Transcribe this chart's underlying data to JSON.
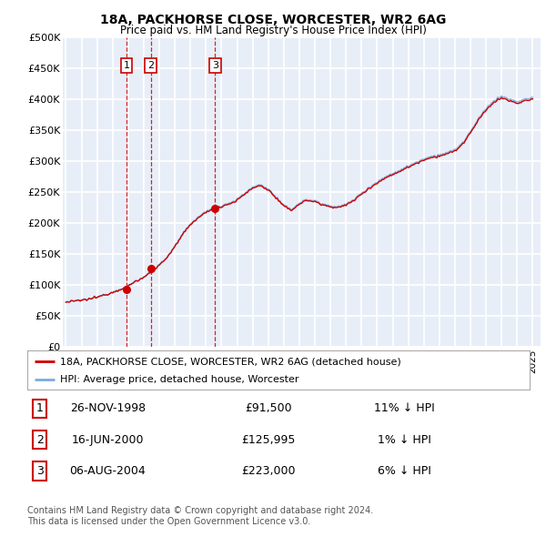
{
  "title": "18A, PACKHORSE CLOSE, WORCESTER, WR2 6AG",
  "subtitle": "Price paid vs. HM Land Registry's House Price Index (HPI)",
  "ylim": [
    0,
    500000
  ],
  "yticks": [
    0,
    50000,
    100000,
    150000,
    200000,
    250000,
    300000,
    350000,
    400000,
    450000,
    500000
  ],
  "ytick_labels": [
    "£0",
    "£50K",
    "£100K",
    "£150K",
    "£200K",
    "£250K",
    "£300K",
    "£350K",
    "£400K",
    "£450K",
    "£500K"
  ],
  "plot_bg_color": "#e8eef8",
  "grid_color": "#ffffff",
  "sale_dates_num": [
    1998.9,
    2000.46,
    2004.59
  ],
  "sale_prices": [
    91500,
    125995,
    223000
  ],
  "sale_labels": [
    "1",
    "2",
    "3"
  ],
  "vline_color": "#cc0000",
  "sale_dot_color": "#cc0000",
  "hpi_line_color": "#7aacdc",
  "price_line_color": "#cc0000",
  "legend_label_price": "18A, PACKHORSE CLOSE, WORCESTER, WR2 6AG (detached house)",
  "legend_label_hpi": "HPI: Average price, detached house, Worcester",
  "table_rows": [
    [
      "1",
      "26-NOV-1998",
      "£91,500",
      "11% ↓ HPI"
    ],
    [
      "2",
      "16-JUN-2000",
      "£125,995",
      "1% ↓ HPI"
    ],
    [
      "3",
      "06-AUG-2004",
      "£223,000",
      "6% ↓ HPI"
    ]
  ],
  "footnote": "Contains HM Land Registry data © Crown copyright and database right 2024.\nThis data is licensed under the Open Government Licence v3.0.",
  "xlim_start": 1994.8,
  "xlim_end": 2025.5,
  "hpi_price_points": {
    "1995.0": 72000,
    "1995.5": 73500,
    "1996.0": 75000,
    "1996.5": 77000,
    "1997.0": 80000,
    "1997.5": 84000,
    "1998.0": 88000,
    "1998.5": 93000,
    "1999.0": 98000,
    "1999.5": 106000,
    "2000.0": 112000,
    "2000.5": 122000,
    "2001.0": 132000,
    "2001.5": 145000,
    "2002.0": 162000,
    "2002.5": 182000,
    "2003.0": 198000,
    "2003.5": 210000,
    "2004.0": 218000,
    "2004.5": 224000,
    "2005.0": 228000,
    "2005.5": 232000,
    "2006.0": 238000,
    "2006.5": 248000,
    "2007.0": 258000,
    "2007.5": 262000,
    "2008.0": 255000,
    "2008.5": 242000,
    "2009.0": 228000,
    "2009.5": 222000,
    "2010.0": 232000,
    "2010.5": 238000,
    "2011.0": 236000,
    "2011.5": 230000,
    "2012.0": 228000,
    "2012.5": 226000,
    "2013.0": 230000,
    "2013.5": 238000,
    "2014.0": 248000,
    "2014.5": 258000,
    "2015.0": 266000,
    "2015.5": 274000,
    "2016.0": 280000,
    "2016.5": 286000,
    "2017.0": 292000,
    "2017.5": 298000,
    "2018.0": 304000,
    "2018.5": 308000,
    "2019.0": 310000,
    "2019.5": 314000,
    "2020.0": 318000,
    "2020.5": 330000,
    "2021.0": 348000,
    "2021.5": 368000,
    "2022.0": 385000,
    "2022.5": 398000,
    "2023.0": 405000,
    "2023.5": 400000,
    "2024.0": 396000,
    "2024.5": 400000,
    "2025.0": 403000
  }
}
